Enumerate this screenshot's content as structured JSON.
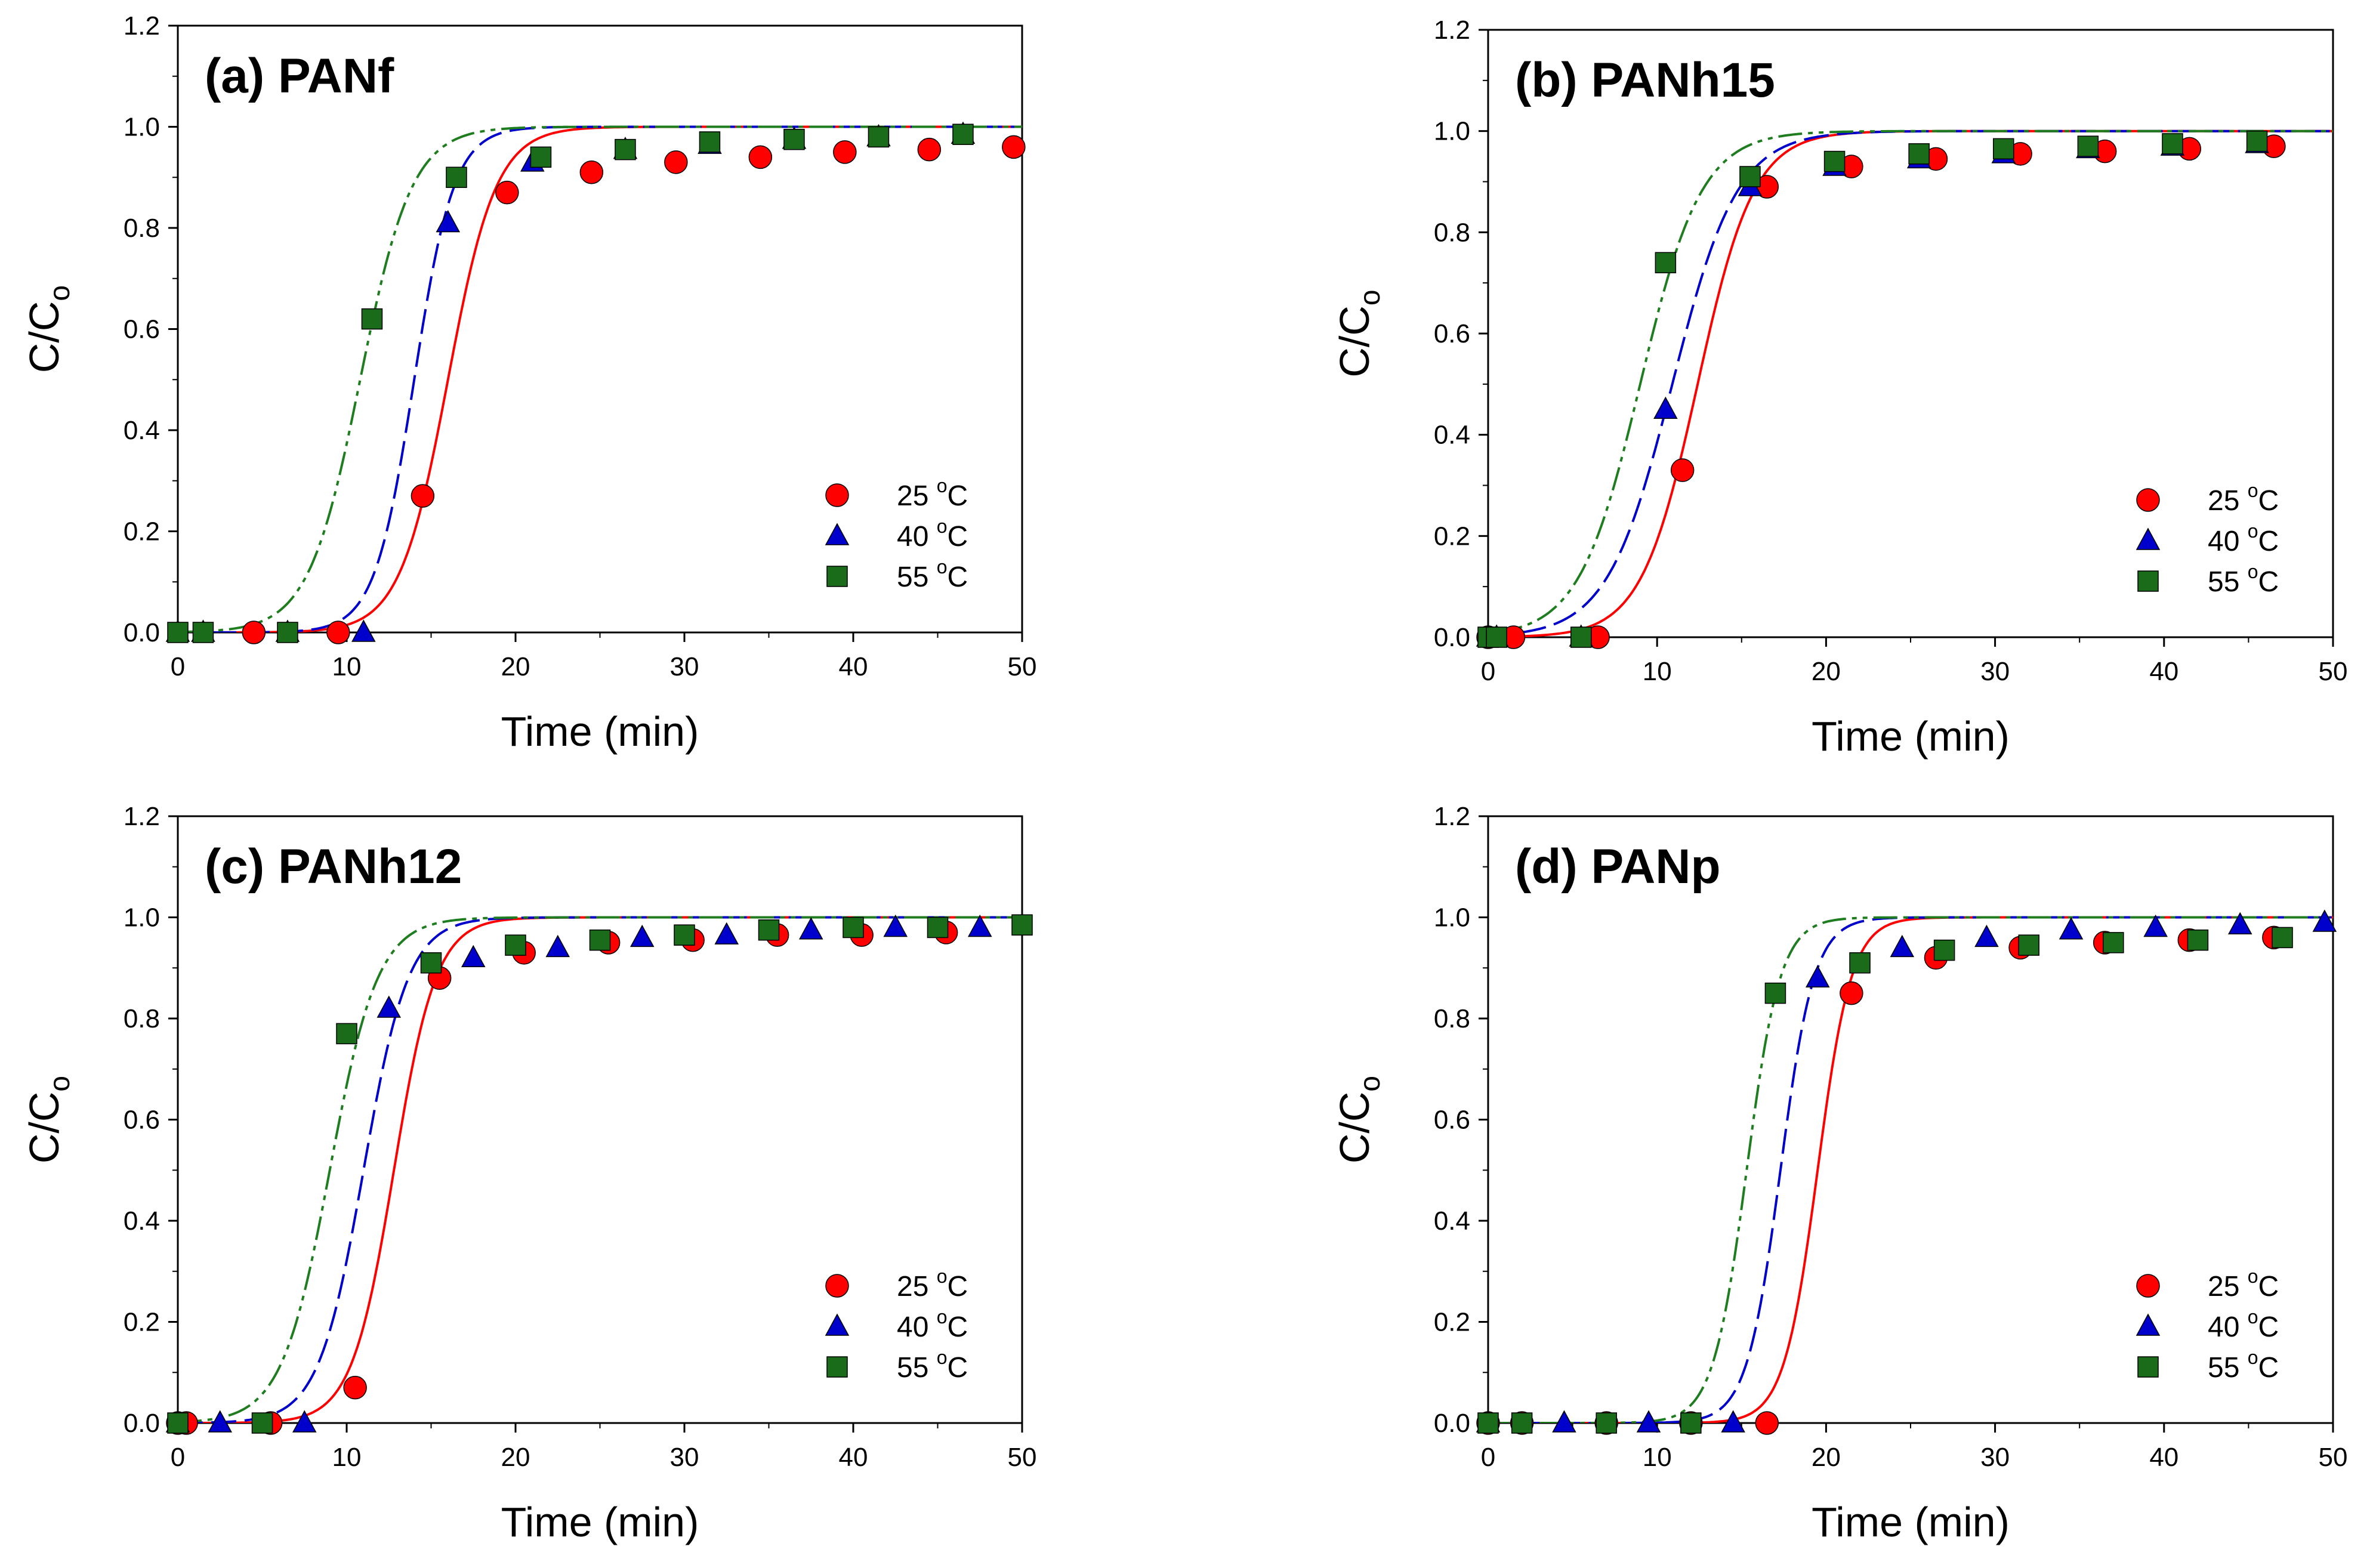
{
  "colors": {
    "25": "#ff0000",
    "40": "#0000cc",
    "55": "#1a6b1a",
    "line_55": "#1e7d1e"
  },
  "chart_data": [
    {
      "type": "scatter",
      "id": "a",
      "title": "(a) PANf",
      "xlabel": "Time (min)",
      "ylabel_main": "C/C",
      "ylabel_sub": "o",
      "xlim": [
        0,
        50
      ],
      "ylim": [
        0,
        1.2
      ],
      "xticks": [
        "0",
        "10",
        "20",
        "30",
        "40",
        "50"
      ],
      "yticks": [
        "0.0",
        "0.2",
        "0.4",
        "0.6",
        "0.8",
        "1.0",
        "1.2"
      ],
      "legend_position": "lower-right",
      "series": [
        {
          "name": "25",
          "label_num": "25 ",
          "label_sup": "o",
          "label_unit": "C",
          "marker": "circle",
          "x": [
            4.5,
            9.5,
            14.5,
            19.5,
            24.5,
            29.5,
            34.5,
            39.5,
            44.5,
            49.5
          ],
          "y": [
            0.0,
            0.0,
            0.27,
            0.87,
            0.91,
            0.93,
            0.94,
            0.95,
            0.955,
            0.96
          ],
          "fit": {
            "t50": 16.0,
            "k": 0.7
          }
        },
        {
          "name": "40",
          "label_num": "40 ",
          "label_sup": "o",
          "label_unit": "C",
          "marker": "triangle",
          "x": [
            0,
            1.5,
            6.5,
            11,
            16,
            21,
            26.5,
            31.5,
            36.5,
            41.5,
            46.5
          ],
          "y": [
            0.0,
            0.0,
            0.0,
            0.0,
            0.81,
            0.93,
            0.955,
            0.965,
            0.975,
            0.98,
            0.985
          ],
          "fit": {
            "t50": 14.0,
            "k": 0.85
          }
        },
        {
          "name": "55",
          "label_num": "55 ",
          "label_sup": "o",
          "label_unit": "C",
          "marker": "square",
          "x": [
            0,
            1.5,
            6.5,
            11.5,
            16.5,
            21.5,
            26.5,
            31.5,
            36.5,
            41.5,
            46.5
          ],
          "y": [
            0.0,
            0.0,
            0.0,
            0.62,
            0.9,
            0.94,
            0.955,
            0.97,
            0.975,
            0.98,
            0.985
          ],
          "fit": {
            "t50": 10.8,
            "k": 0.65
          }
        }
      ]
    },
    {
      "type": "scatter",
      "id": "b",
      "title": "(b) PANh15",
      "xlabel": "Time (min)",
      "ylabel_main": "C/C",
      "ylabel_sub": "o",
      "xlim": [
        0,
        50
      ],
      "ylim": [
        0,
        1.2
      ],
      "xticks": [
        "0",
        "10",
        "20",
        "30",
        "40",
        "50"
      ],
      "yticks": [
        "0.0",
        "0.2",
        "0.4",
        "0.6",
        "0.8",
        "1.0",
        "1.2"
      ],
      "legend_position": "lower-right",
      "series": [
        {
          "name": "25",
          "label_num": "25 ",
          "label_sup": "o",
          "label_unit": "C",
          "marker": "circle",
          "x": [
            0,
            1.5,
            6.5,
            11.5,
            16.5,
            21.5,
            26.5,
            31.5,
            36.5,
            41.5,
            46.5
          ],
          "y": [
            0.0,
            0.0,
            0.0,
            0.33,
            0.89,
            0.93,
            0.945,
            0.955,
            0.96,
            0.965,
            0.97
          ],
          "fit": {
            "t50": 12.4,
            "k": 0.6
          }
        },
        {
          "name": "40",
          "label_num": "40 ",
          "label_sup": "o",
          "label_unit": "C",
          "marker": "triangle",
          "x": [
            0,
            0.5,
            5.5,
            10.5,
            15.5,
            20.5,
            25.5,
            30.5,
            35.5,
            40.5,
            45.5
          ],
          "y": [
            0.0,
            0.0,
            0.0,
            0.45,
            0.89,
            0.93,
            0.945,
            0.955,
            0.965,
            0.97,
            0.975
          ],
          "fit": {
            "t50": 10.9,
            "k": 0.52
          }
        },
        {
          "name": "55",
          "label_num": "55 ",
          "label_sup": "o",
          "label_unit": "C",
          "marker": "square",
          "x": [
            0,
            0.5,
            5.5,
            10.5,
            15.5,
            20.5,
            25.5,
            30.5,
            35.5,
            40.5,
            45.5
          ],
          "y": [
            0.0,
            0.0,
            0.0,
            0.74,
            0.91,
            0.94,
            0.955,
            0.965,
            0.97,
            0.975,
            0.98
          ],
          "fit": {
            "t50": 9.0,
            "k": 0.55
          }
        }
      ]
    },
    {
      "type": "scatter",
      "id": "c",
      "title": "(c) PANh12",
      "xlabel": "Time (min)",
      "ylabel_main": "C/C",
      "ylabel_sub": "o",
      "xlim": [
        0,
        50
      ],
      "ylim": [
        0,
        1.2
      ],
      "xticks": [
        "0",
        "10",
        "20",
        "30",
        "40",
        "50"
      ],
      "yticks": [
        "0.0",
        "0.2",
        "0.4",
        "0.6",
        "0.8",
        "1.0",
        "1.2"
      ],
      "legend_position": "lower-right",
      "series": [
        {
          "name": "25",
          "label_num": "25 ",
          "label_sup": "o",
          "label_unit": "C",
          "marker": "circle",
          "x": [
            0,
            0.5,
            5.5,
            10.5,
            15.5,
            20.5,
            25.5,
            30.5,
            35.5,
            40.5,
            45.5
          ],
          "y": [
            0.0,
            0.0,
            0.0,
            0.07,
            0.88,
            0.93,
            0.95,
            0.955,
            0.965,
            0.965,
            0.97
          ],
          "fit": {
            "t50": 12.8,
            "k": 0.8
          }
        },
        {
          "name": "40",
          "label_num": "40 ",
          "label_sup": "o",
          "label_unit": "C",
          "marker": "triangle",
          "x": [
            0,
            2.5,
            7.5,
            12.5,
            17.5,
            22.5,
            27.5,
            32.5,
            37.5,
            42.5,
            47.5
          ],
          "y": [
            0.0,
            0.0,
            0.0,
            0.82,
            0.92,
            0.94,
            0.96,
            0.965,
            0.975,
            0.98,
            0.98
          ],
          "fit": {
            "t50": 11.0,
            "k": 0.75
          }
        },
        {
          "name": "55",
          "label_num": "55 ",
          "label_sup": "o",
          "label_unit": "C",
          "marker": "square",
          "x": [
            0,
            5,
            10,
            15,
            20,
            25,
            30,
            35,
            40,
            45,
            50
          ],
          "y": [
            0.0,
            0.0,
            0.77,
            0.91,
            0.945,
            0.955,
            0.965,
            0.975,
            0.98,
            0.98,
            0.985
          ],
          "fit": {
            "t50": 9.0,
            "k": 0.7
          }
        }
      ]
    },
    {
      "type": "scatter",
      "id": "d",
      "title": "(d) PANp",
      "xlabel": "Time (min)",
      "ylabel_main": "C/C",
      "ylabel_sub": "o",
      "xlim": [
        0,
        50
      ],
      "ylim": [
        0,
        1.2
      ],
      "xticks": [
        "0",
        "10",
        "20",
        "30",
        "40",
        "50"
      ],
      "yticks": [
        "0.0",
        "0.2",
        "0.4",
        "0.6",
        "0.8",
        "1.0",
        "1.2"
      ],
      "legend_position": "lower-right",
      "series": [
        {
          "name": "25",
          "label_num": "25 ",
          "label_sup": "o",
          "label_unit": "C",
          "marker": "circle",
          "x": [
            0,
            2,
            7,
            12,
            16.5,
            21.5,
            26.5,
            31.5,
            36.5,
            41.5,
            46.5
          ],
          "y": [
            0.0,
            0.0,
            0.0,
            0.0,
            0.0,
            0.85,
            0.92,
            0.94,
            0.95,
            0.955,
            0.96
          ],
          "fit": {
            "t50": 19.5,
            "k": 1.0
          }
        },
        {
          "name": "40",
          "label_num": "40 ",
          "label_sup": "o",
          "label_unit": "C",
          "marker": "triangle",
          "x": [
            0,
            4.5,
            9.5,
            14.5,
            19.5,
            24.5,
            29.5,
            34.5,
            39.5,
            44.5,
            49.5
          ],
          "y": [
            0.0,
            0.0,
            0.0,
            0.0,
            0.88,
            0.94,
            0.96,
            0.975,
            0.98,
            0.985,
            0.99
          ],
          "fit": {
            "t50": 17.3,
            "k": 1.0
          }
        },
        {
          "name": "55",
          "label_num": "55 ",
          "label_sup": "o",
          "label_unit": "C",
          "marker": "square",
          "x": [
            0,
            2,
            7,
            12,
            17,
            22,
            27,
            32,
            37,
            42,
            47
          ],
          "y": [
            0.0,
            0.0,
            0.0,
            0.0,
            0.85,
            0.91,
            0.935,
            0.945,
            0.95,
            0.955,
            0.96
          ],
          "fit": {
            "t50": 15.3,
            "k": 1.0
          }
        }
      ]
    }
  ]
}
